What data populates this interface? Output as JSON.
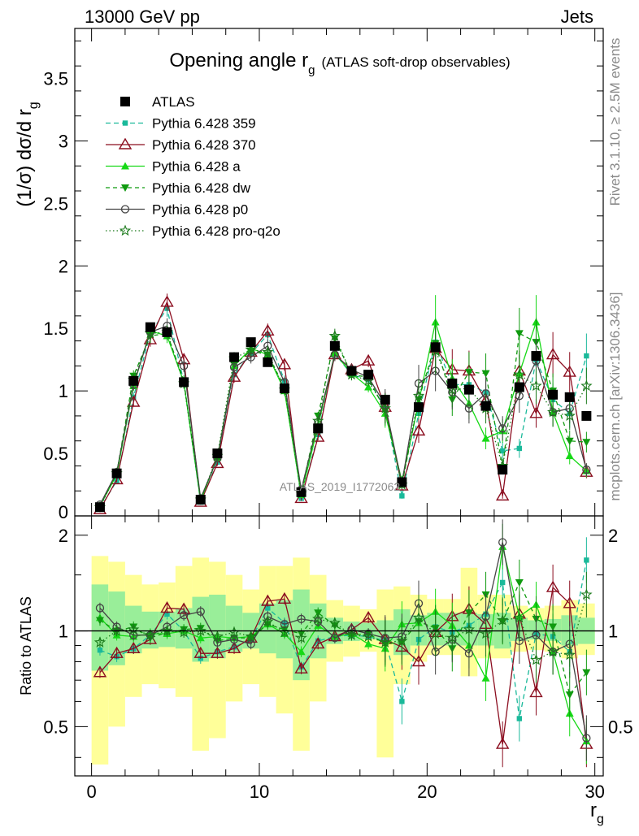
{
  "header": {
    "left": "13000 GeV pp",
    "right": "Jets"
  },
  "side_labels": {
    "rivet": "Rivet 3.1.10, ≥ 2.5M events",
    "mcplots": "mcplots.cern.ch [arXiv:1306.3436]"
  },
  "chart_data": {
    "type": "line",
    "title": "Opening angle r",
    "title_sub": "g",
    "title_suffix": "(ATLAS soft-drop observables)",
    "watermark": "ATLAS_2019_I1772062",
    "ylabel": "(1/σ) dσ/d r",
    "ylabel_sub": "g",
    "ratio_ylabel": "Ratio to ATLAS",
    "xlabel": "r",
    "xlabel_sub": "g",
    "xlim": [
      -1,
      30.5
    ],
    "ylim": [
      0,
      3.9
    ],
    "ratio_ylim": [
      0.35,
      2.3
    ],
    "xticks": [
      0,
      10,
      20,
      30
    ],
    "yticks": [
      0.5,
      1,
      1.5,
      2,
      2.5,
      3,
      3.5
    ],
    "yticks_visible_zero": "0",
    "ratio_yticks": [
      0.5,
      1,
      2
    ],
    "x": [
      0.5,
      1.5,
      2.5,
      3.5,
      4.5,
      5.5,
      6.5,
      7.5,
      8.5,
      9.5,
      10.5,
      11.5,
      12.5,
      13.5,
      14.5,
      15.5,
      16.5,
      17.5,
      18.5,
      19.5,
      20.5,
      21.5,
      22.5,
      23.5,
      24.5,
      25.5,
      26.5,
      27.5,
      28.5,
      29.5
    ],
    "series": [
      {
        "name": "ATLAS",
        "color": "#000000",
        "marker": "square",
        "dash": "none",
        "values": [
          0.07,
          0.34,
          1.08,
          1.51,
          1.47,
          1.07,
          0.13,
          0.5,
          1.27,
          1.39,
          1.23,
          1.02,
          0.19,
          0.7,
          1.36,
          1.16,
          1.13,
          0.93,
          0.27,
          0.87,
          1.35,
          1.06,
          1.01,
          0.88,
          0.37,
          1.03,
          1.28,
          0.97,
          0.95,
          0.8
        ]
      },
      {
        "name": "Pythia 6.428 359",
        "color": "#1ab99a",
        "marker": "smallsquare",
        "dash": "6,4",
        "values": [
          0.06,
          0.28,
          0.95,
          1.46,
          1.66,
          1.07,
          0.11,
          0.43,
          1.13,
          1.3,
          1.45,
          1.08,
          0.14,
          0.65,
          1.3,
          1.13,
          1.09,
          0.86,
          0.16,
          0.82,
          1.39,
          1.05,
          1.05,
          0.99,
          0.52,
          0.54,
          1.25,
          0.93,
          0.82,
          1.28
        ]
      },
      {
        "name": "Pythia 6.428 370",
        "color": "#8b0d1f",
        "marker": "triangle-open",
        "dash": "none",
        "values": [
          0.05,
          0.29,
          0.91,
          1.41,
          1.71,
          1.25,
          0.11,
          0.42,
          1.11,
          1.31,
          1.48,
          1.21,
          0.14,
          0.63,
          1.29,
          1.17,
          1.24,
          0.87,
          0.24,
          0.68,
          1.34,
          1.17,
          1.16,
          0.92,
          0.16,
          1.16,
          0.82,
          1.29,
          1.15,
          0.35
        ]
      },
      {
        "name": "Pythia 6.428 a",
        "color": "#16d916",
        "marker": "triangle",
        "dash": "none",
        "values": [
          0.08,
          0.33,
          1.04,
          1.48,
          1.44,
          1.07,
          0.12,
          0.47,
          1.2,
          1.34,
          1.29,
          1.0,
          0.17,
          0.72,
          1.3,
          1.14,
          1.03,
          0.82,
          0.28,
          0.91,
          1.55,
          1.1,
          0.9,
          0.62,
          0.68,
          1.14,
          1.55,
          0.83,
          0.48,
          0.36
        ]
      },
      {
        "name": "Pythia 6.428 dw",
        "color": "#0f9a0f",
        "marker": "triangle-down",
        "dash": "5,4",
        "values": [
          0.08,
          0.34,
          1.12,
          1.44,
          1.46,
          1.08,
          0.13,
          0.46,
          1.21,
          1.32,
          1.29,
          1.03,
          0.19,
          0.8,
          1.42,
          1.13,
          1.11,
          0.84,
          0.25,
          0.93,
          1.38,
          0.93,
          1.15,
          1.14,
          0.39,
          1.46,
          1.39,
          1.0,
          0.6,
          0.59
        ]
      },
      {
        "name": "Pythia 6.428 p0",
        "color": "#444444",
        "marker": "circle-open",
        "dash": "none",
        "values": [
          0.09,
          0.35,
          1.05,
          1.47,
          1.52,
          1.2,
          0.14,
          0.46,
          1.19,
          1.27,
          1.36,
          1.07,
          0.21,
          0.75,
          1.29,
          1.17,
          1.11,
          0.89,
          0.26,
          1.06,
          1.16,
          0.99,
          0.86,
          0.98,
          0.7,
          0.96,
          1.24,
          0.83,
          0.86,
          0.37
        ]
      },
      {
        "name": "Pythia 6.428 pro-q2o",
        "color": "#1b7a1b",
        "marker": "star",
        "dash": "1.5,3",
        "values": [
          0.07,
          0.34,
          1.09,
          1.46,
          1.47,
          1.06,
          0.13,
          0.48,
          1.26,
          1.33,
          1.31,
          1.01,
          0.18,
          0.76,
          1.44,
          1.13,
          1.08,
          0.86,
          0.25,
          0.96,
          1.32,
          1.01,
          1.02,
          0.86,
          0.4,
          1.13,
          1.04,
          0.83,
          0.8,
          1.04
        ]
      }
    ],
    "ratio_values": {
      "Pythia 6.428 359": [
        0.87,
        0.83,
        0.88,
        0.97,
        1.13,
        1.0,
        0.82,
        0.86,
        0.89,
        0.94,
        1.18,
        1.06,
        0.77,
        0.93,
        0.96,
        0.97,
        0.96,
        0.93,
        0.6,
        0.94,
        1.03,
        0.99,
        1.04,
        1.13,
        1.42,
        0.53,
        0.98,
        0.96,
        0.86,
        1.67
      ],
      "Pythia 6.428 370": [
        0.74,
        0.85,
        0.88,
        0.94,
        1.18,
        1.17,
        0.85,
        0.85,
        0.88,
        0.95,
        1.24,
        1.26,
        0.76,
        0.91,
        0.96,
        1.01,
        1.1,
        0.94,
        0.89,
        0.8,
        0.99,
        1.11,
        1.17,
        1.05,
        0.44,
        1.13,
        0.64,
        1.37,
        1.22,
        0.44
      ],
      "Pythia 6.428 a": [
        1.1,
        0.97,
        0.96,
        0.98,
        0.98,
        1.0,
        0.95,
        0.96,
        0.95,
        0.96,
        1.05,
        0.98,
        0.86,
        1.04,
        0.96,
        0.98,
        0.91,
        0.88,
        1.05,
        1.06,
        1.15,
        1.04,
        0.9,
        0.71,
        1.84,
        1.11,
        1.21,
        0.86,
        0.55,
        0.45
      ],
      "Pythia 6.428 dw": [
        1.08,
        1.0,
        1.03,
        0.95,
        0.99,
        1.01,
        1.02,
        0.93,
        0.95,
        0.95,
        1.05,
        1.01,
        0.98,
        1.14,
        1.04,
        0.97,
        0.98,
        0.91,
        0.92,
        1.07,
        1.02,
        0.88,
        1.14,
        1.3,
        1.07,
        1.42,
        1.09,
        1.03,
        0.63,
        0.74
      ],
      "Pythia 6.428 p0": [
        1.18,
        1.03,
        0.97,
        0.97,
        1.03,
        1.12,
        1.15,
        0.92,
        0.94,
        0.91,
        1.11,
        1.05,
        1.09,
        1.07,
        0.95,
        1.01,
        0.98,
        0.95,
        0.96,
        1.22,
        0.86,
        0.94,
        0.85,
        1.11,
        1.9,
        0.93,
        0.97,
        0.86,
        0.91,
        0.46
      ],
      "Pythia 6.428 pro-q2o": [
        0.92,
        1.0,
        1.01,
        0.97,
        1.0,
        0.99,
        1.0,
        0.96,
        0.99,
        0.96,
        1.07,
        0.99,
        0.95,
        1.09,
        1.06,
        0.97,
        0.96,
        0.92,
        0.93,
        1.1,
        0.98,
        0.95,
        1.01,
        0.98,
        1.08,
        1.1,
        0.81,
        0.86,
        0.84,
        1.3
      ]
    },
    "band_inner": [
      [
        0.75,
        1.4
      ],
      [
        0.78,
        1.33
      ],
      [
        0.85,
        1.2
      ],
      [
        0.88,
        1.15
      ],
      [
        0.89,
        1.15
      ],
      [
        0.88,
        1.18
      ],
      [
        0.8,
        1.28
      ],
      [
        0.82,
        1.3
      ],
      [
        0.86,
        1.2
      ],
      [
        0.88,
        1.14
      ],
      [
        0.85,
        1.22
      ],
      [
        0.82,
        1.25
      ],
      [
        0.7,
        1.35
      ],
      [
        0.82,
        1.22
      ],
      [
        0.91,
        1.1
      ],
      [
        0.93,
        1.07
      ],
      [
        0.94,
        1.06
      ],
      [
        0.93,
        1.08
      ],
      [
        0.84,
        1.17
      ],
      [
        0.9,
        1.12
      ],
      [
        0.9,
        1.14
      ],
      [
        0.9,
        1.14
      ],
      [
        0.9,
        1.14
      ],
      [
        0.9,
        1.13
      ],
      [
        0.88,
        1.14
      ],
      [
        0.93,
        1.1
      ],
      [
        0.94,
        1.08
      ],
      [
        0.93,
        1.09
      ],
      [
        0.9,
        1.12
      ],
      [
        0.91,
        1.1
      ]
    ],
    "band_outer": [
      [
        0.38,
        1.72
      ],
      [
        0.5,
        1.65
      ],
      [
        0.62,
        1.5
      ],
      [
        0.68,
        1.4
      ],
      [
        0.66,
        1.42
      ],
      [
        0.62,
        1.6
      ],
      [
        0.42,
        1.7
      ],
      [
        0.46,
        1.65
      ],
      [
        0.6,
        1.5
      ],
      [
        0.68,
        1.35
      ],
      [
        0.62,
        1.6
      ],
      [
        0.55,
        1.6
      ],
      [
        0.42,
        1.7
      ],
      [
        0.6,
        1.5
      ],
      [
        0.8,
        1.25
      ],
      [
        0.83,
        1.2
      ],
      [
        0.86,
        1.17
      ],
      [
        0.4,
        1.35
      ],
      [
        0.68,
        1.38
      ],
      [
        0.8,
        1.3
      ],
      [
        0.84,
        1.26
      ],
      [
        0.84,
        1.26
      ],
      [
        0.72,
        1.58
      ],
      [
        0.82,
        1.3
      ],
      [
        0.82,
        1.3
      ],
      [
        0.86,
        1.2
      ],
      [
        0.87,
        1.18
      ],
      [
        0.86,
        1.2
      ],
      [
        0.82,
        1.25
      ],
      [
        0.84,
        1.22
      ]
    ]
  }
}
